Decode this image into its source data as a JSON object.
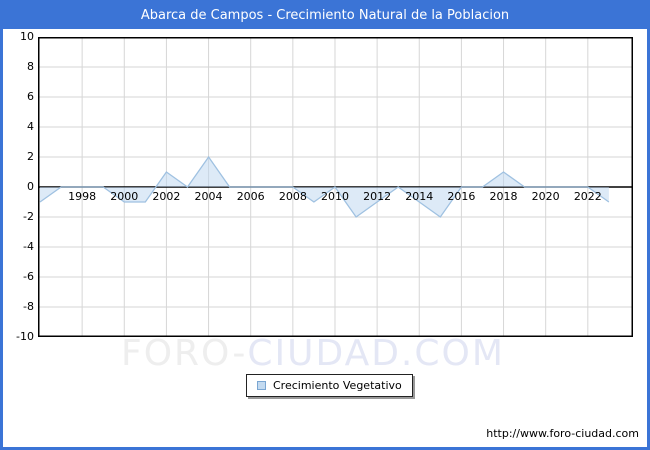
{
  "window": {
    "title": "Abarca de Campos - Crecimiento Natural de la Poblacion",
    "title_bar_color": "#3b74d6",
    "border_color": "#3b74d6",
    "background_color": "#ffffff"
  },
  "chart_data": {
    "type": "area",
    "title": "Abarca de Campos - Crecimiento Natural de la Poblacion",
    "x": [
      1996,
      1997,
      1998,
      1999,
      2000,
      2001,
      2002,
      2003,
      2004,
      2005,
      2006,
      2007,
      2008,
      2009,
      2010,
      2011,
      2012,
      2013,
      2014,
      2015,
      2016,
      2017,
      2018,
      2019,
      2020,
      2021,
      2022,
      2023
    ],
    "values": [
      -1,
      0,
      0,
      0,
      -1,
      -1,
      1,
      0,
      2,
      0,
      0,
      0,
      0,
      -1,
      0,
      -2,
      -1,
      0,
      -1,
      -2,
      0,
      0,
      1,
      0,
      0,
      0,
      0,
      -1
    ],
    "series_name": "Crecimiento Vegetativo",
    "xlabel": "",
    "ylabel": "",
    "ylim": [
      -10,
      10
    ],
    "y_tick_step": 2,
    "y_ticks": [
      10,
      8,
      6,
      4,
      2,
      0,
      -2,
      -4,
      -6,
      -8,
      -10
    ],
    "x_tick_labels": [
      "1998",
      "2000",
      "2002",
      "2004",
      "2006",
      "2008",
      "2010",
      "2012",
      "2014",
      "2016",
      "2018",
      "2020",
      "2022"
    ],
    "grid": true,
    "legend_position": "bottom-center",
    "line_color": "#9fc1e1",
    "fill_color": "rgba(188,214,240,0.5)",
    "grid_color": "#d6d6d6",
    "axis_color": "#000000"
  },
  "legend": {
    "label": "Crecimiento Vegetativo",
    "swatch_fill": "#c3daf0",
    "swatch_border": "#7aa6d2"
  },
  "watermark": {
    "part1": "FORO-",
    "part2": "CIUDAD.COM"
  },
  "footer": {
    "url": "http://www.foro-ciudad.com"
  }
}
